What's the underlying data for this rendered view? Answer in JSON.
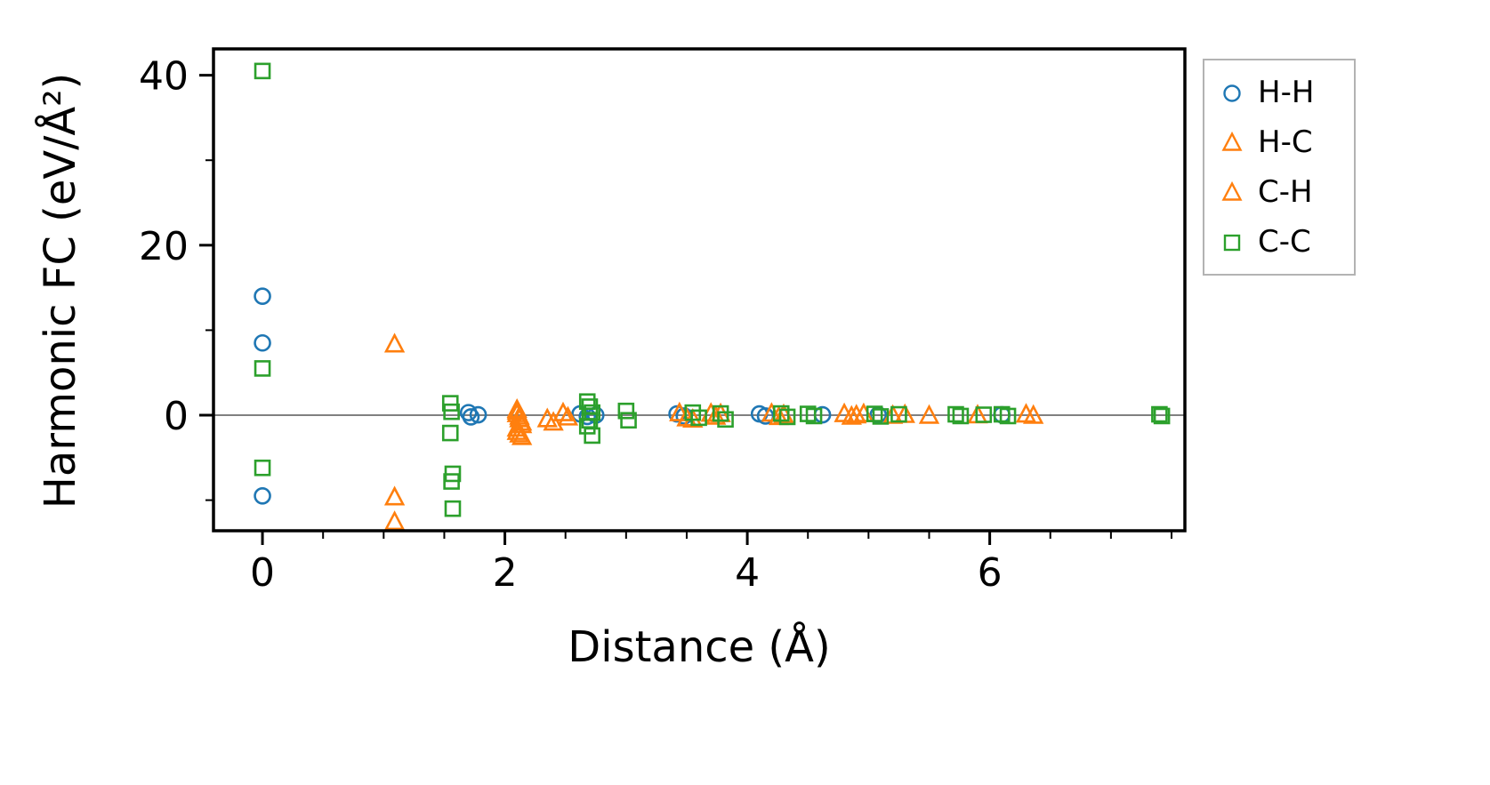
{
  "chart_data": {
    "type": "scatter",
    "title": "",
    "xlabel": "Distance (Å)",
    "ylabel": "Harmonic FC (eV/Å²)",
    "xlim": [
      -0.404,
      7.61
    ],
    "ylim": [
      -13.6,
      43.1
    ],
    "xticks": [
      0,
      2,
      4,
      6
    ],
    "yticks": [
      0,
      20,
      40
    ],
    "xminorticks": [
      0.5,
      1,
      1.5,
      2.5,
      3,
      3.5,
      4.5,
      5,
      5.5,
      6.5,
      7,
      7.5
    ],
    "yminorticks": [
      -10,
      10,
      30
    ],
    "grid": false,
    "zero_line": true,
    "zero_line_color": "#808080",
    "legend_position": "outside upper right",
    "series": [
      {
        "name": "H-H",
        "marker": "circle",
        "color": "#1f77b4",
        "points": [
          [
            0,
            14.0
          ],
          [
            0,
            8.5
          ],
          [
            0,
            -9.5
          ],
          [
            1.7,
            0.3
          ],
          [
            1.72,
            -0.2
          ],
          [
            1.78,
            0.05
          ],
          [
            2.62,
            0.15
          ],
          [
            2.68,
            -0.15
          ],
          [
            2.75,
            0.0
          ],
          [
            3.42,
            0.15
          ],
          [
            3.48,
            -0.1
          ],
          [
            4.1,
            0.15
          ],
          [
            4.15,
            -0.1
          ],
          [
            4.62,
            0.05
          ],
          [
            5.08,
            0.05
          ],
          [
            6.1,
            0.05
          ]
        ]
      },
      {
        "name": "H-C",
        "marker": "triangle",
        "color": "#ff7f0e",
        "points": [
          [
            1.09,
            8.3
          ],
          [
            2.1,
            0.4
          ],
          [
            2.12,
            -0.2
          ],
          [
            2.14,
            -0.9
          ],
          [
            2.1,
            -1.6
          ],
          [
            2.12,
            -2.3
          ],
          [
            2.48,
            0.2
          ],
          [
            2.52,
            -0.3
          ],
          [
            3.44,
            0.2
          ],
          [
            3.5,
            -0.4
          ],
          [
            3.7,
            0.15
          ],
          [
            3.74,
            -0.2
          ],
          [
            4.2,
            0.15
          ],
          [
            4.26,
            -0.25
          ],
          [
            4.8,
            0.1
          ],
          [
            4.86,
            -0.2
          ],
          [
            5.2,
            -0.1
          ],
          [
            5.5,
            -0.1
          ],
          [
            6.3,
            0.05
          ]
        ]
      },
      {
        "name": "C-H",
        "marker": "triangle",
        "color": "#ff7f0e",
        "points": [
          [
            1.09,
            -9.7
          ],
          [
            1.09,
            -12.6
          ],
          [
            2.1,
            0.6
          ],
          [
            2.1,
            0.1
          ],
          [
            2.12,
            -0.5
          ],
          [
            2.14,
            -1.2
          ],
          [
            2.1,
            -2.0
          ],
          [
            2.14,
            -2.6
          ],
          [
            2.35,
            -0.5
          ],
          [
            2.4,
            -0.9
          ],
          [
            3.55,
            -0.55
          ],
          [
            3.78,
            0.1
          ],
          [
            4.3,
            0.0
          ],
          [
            4.9,
            -0.05
          ],
          [
            4.96,
            0.1
          ],
          [
            5.3,
            0.0
          ],
          [
            5.9,
            -0.05
          ],
          [
            6.36,
            -0.1
          ]
        ]
      },
      {
        "name": "C-C",
        "marker": "square",
        "color": "#2ca02c",
        "points": [
          [
            0,
            40.5
          ],
          [
            0,
            5.5
          ],
          [
            0,
            -6.2
          ],
          [
            1.55,
            1.4
          ],
          [
            1.56,
            0.4
          ],
          [
            1.55,
            -2.1
          ],
          [
            1.57,
            -6.9
          ],
          [
            1.56,
            -7.8
          ],
          [
            1.57,
            -11.0
          ],
          [
            2.68,
            1.6
          ],
          [
            2.7,
            1.0
          ],
          [
            2.72,
            0.3
          ],
          [
            2.7,
            -0.6
          ],
          [
            2.68,
            -1.3
          ],
          [
            2.72,
            -2.4
          ],
          [
            3.0,
            0.5
          ],
          [
            3.02,
            -0.6
          ],
          [
            3.55,
            0.3
          ],
          [
            3.6,
            -0.3
          ],
          [
            3.78,
            0.2
          ],
          [
            3.82,
            -0.5
          ],
          [
            4.28,
            0.2
          ],
          [
            4.33,
            -0.2
          ],
          [
            4.5,
            0.15
          ],
          [
            4.55,
            -0.1
          ],
          [
            5.05,
            0.15
          ],
          [
            5.1,
            -0.15
          ],
          [
            5.25,
            0.1
          ],
          [
            5.72,
            0.1
          ],
          [
            5.76,
            -0.1
          ],
          [
            5.95,
            0.05
          ],
          [
            6.1,
            0.1
          ],
          [
            6.15,
            -0.1
          ],
          [
            7.4,
            0.1
          ],
          [
            7.42,
            -0.1
          ]
        ]
      }
    ]
  }
}
